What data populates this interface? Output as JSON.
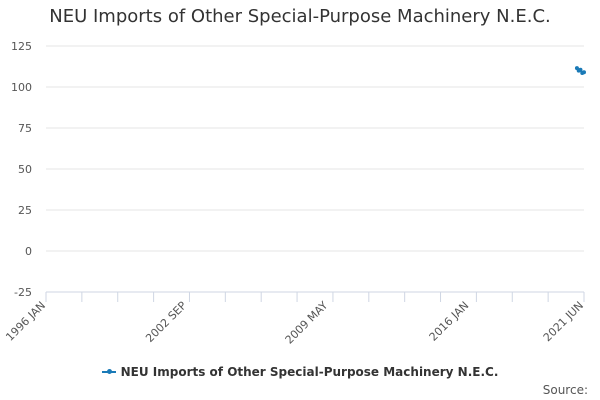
{
  "chart_data": {
    "type": "line",
    "title": "NEU Imports of Other Special-Purpose Machinery N.E.C.",
    "xlabel": "",
    "ylabel": "",
    "ylim": [
      -25,
      125
    ],
    "y_ticks": [
      125,
      100,
      75,
      50,
      25,
      0,
      -25
    ],
    "x_range": [
      "1996-01",
      "2021-06"
    ],
    "x_tick_labels": [
      {
        "label": "1996 JAN",
        "date": "1996-01"
      },
      {
        "label": "2002 SEP",
        "date": "2002-09"
      },
      {
        "label": "2009 MAY",
        "date": "2009-05"
      },
      {
        "label": "2016 JAN",
        "date": "2016-01"
      },
      {
        "label": "2021 JUN",
        "date": "2021-06"
      }
    ],
    "grid": true,
    "legend_position": "bottom",
    "series": [
      {
        "name": "NEU Imports of Other Special-Purpose Machinery N.E.C.",
        "color": "#1a7ab7",
        "points": [
          {
            "x": "2021-02",
            "y": 111.5
          },
          {
            "x": "2021-03",
            "y": 110.0
          },
          {
            "x": "2021-04",
            "y": 110.5
          },
          {
            "x": "2021-05",
            "y": 108.5
          },
          {
            "x": "2021-06",
            "y": 109.0
          }
        ]
      }
    ]
  },
  "legend": {
    "label": "NEU Imports of Other Special-Purpose Machinery N.E.C."
  },
  "footer": {
    "source_label": "Source:"
  }
}
